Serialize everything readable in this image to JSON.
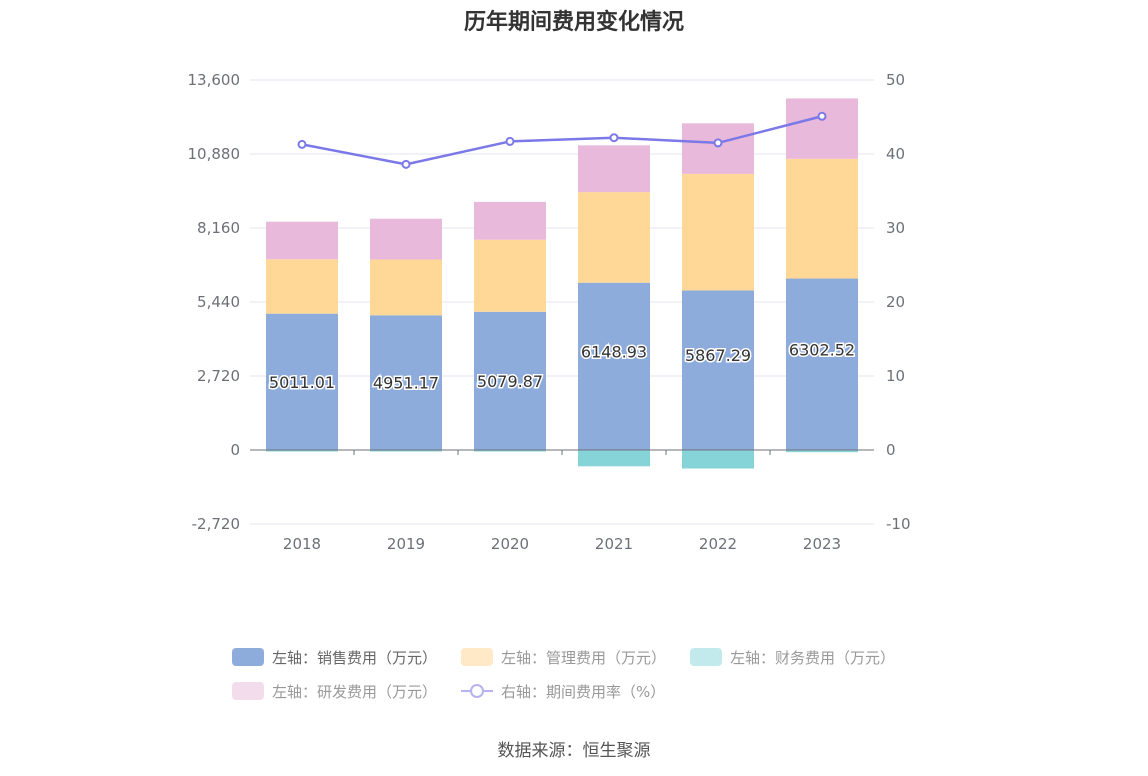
{
  "chart_data": {
    "type": "bar",
    "title": "历年期间费用变化情况",
    "categories": [
      "2018",
      "2019",
      "2020",
      "2021",
      "2022",
      "2023"
    ],
    "series": [
      {
        "name": "左轴：销售费用（万元）",
        "axis": "left",
        "color": "#8eacdb",
        "values": [
          5011.01,
          4951.17,
          5079.87,
          6148.93,
          5867.29,
          6302.52
        ]
      },
      {
        "name": "左轴：管理费用（万元）",
        "axis": "left",
        "color": "#ffd898",
        "values": [
          2000,
          2050,
          2650,
          3330,
          4280,
          4400
        ]
      },
      {
        "name": "左轴：财务费用（万元）",
        "axis": "left",
        "color": "#86d4d8",
        "values": [
          -20,
          -10,
          -30,
          -600,
          -680,
          -80
        ]
      },
      {
        "name": "左轴：研发费用（万元）",
        "axis": "left",
        "color": "#e8b9db",
        "values": [
          1380,
          1500,
          1390,
          1720,
          1860,
          2220
        ]
      },
      {
        "name": "右轴：期间费用率（%）",
        "axis": "right",
        "type": "line",
        "color": "#7b78e8",
        "values": [
          41.3,
          38.6,
          41.7,
          42.2,
          41.5,
          45.1
        ]
      }
    ],
    "data_labels": [
      "5011.01",
      "4951.17",
      "5079.87",
      "6148.93",
      "5867.29",
      "6302.52"
    ],
    "y_left": {
      "ticks": [
        "-2,720",
        "0",
        "2,720",
        "5,440",
        "8,160",
        "10,880",
        "13,600"
      ],
      "min": -2720,
      "max": 13600
    },
    "y_right": {
      "ticks": [
        "-10",
        "0",
        "10",
        "20",
        "30",
        "40",
        "50"
      ],
      "min": -10,
      "max": 50
    },
    "legend_position": "bottom",
    "grid": true
  },
  "source": "数据来源：恒生聚源"
}
